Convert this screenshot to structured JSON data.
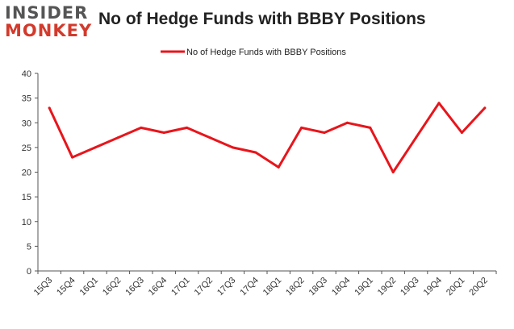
{
  "logo": {
    "top": "INSIDER",
    "bottom": "MONKEY"
  },
  "chart_data": {
    "type": "line",
    "title": "No of Hedge Funds with BBBY Positions",
    "xlabel": "",
    "ylabel": "",
    "categories": [
      "15Q3",
      "15Q4",
      "16Q1",
      "16Q2",
      "16Q3",
      "16Q4",
      "17Q1",
      "17Q2",
      "17Q3",
      "17Q4",
      "18Q1",
      "18Q2",
      "18Q3",
      "18Q4",
      "19Q1",
      "19Q2",
      "19Q3",
      "19Q4",
      "20Q1",
      "20Q2"
    ],
    "series": [
      {
        "name": "No of Hedge Funds with BBBY Positions",
        "values": [
          33,
          23,
          25,
          27,
          29,
          28,
          29,
          27,
          25,
          24,
          21,
          29,
          28,
          30,
          29,
          20,
          27,
          34,
          28,
          33
        ],
        "color": "#e8151b"
      }
    ],
    "ylim": [
      0,
      40
    ],
    "yticks": [
      0,
      5,
      10,
      15,
      20,
      25,
      30,
      35,
      40
    ],
    "legend": "top-center",
    "grid": false
  }
}
